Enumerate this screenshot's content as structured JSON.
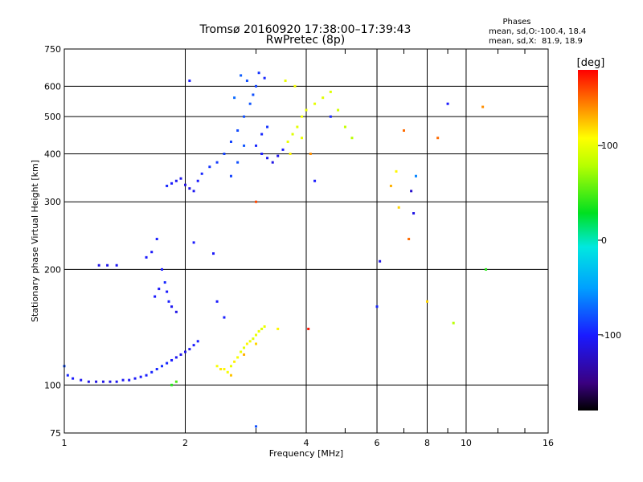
{
  "chart_data": {
    "type": "scatter",
    "title": "Tromsø 20160920 17:38:00–17:39:43",
    "subtitle": "RwPretec (8p)",
    "xlabel": "Frequency [MHz]",
    "ylabel": "Stationary phase Virtual Height [km]",
    "x_scale": "log",
    "y_scale": "log",
    "xlim": [
      1,
      16
    ],
    "ylim": [
      75,
      750
    ],
    "x_ticks": [
      1,
      2,
      4,
      6,
      8,
      10,
      16
    ],
    "y_ticks": [
      75,
      100,
      200,
      300,
      400,
      500,
      600,
      750
    ],
    "grid": true,
    "stats": {
      "heading": "Phases",
      "line1": "mean, sd,O:-100.4, 18.4",
      "line2": "mean, sd,X:  81.9, 18.9"
    },
    "colorbar": {
      "label": "[deg]",
      "range": [
        -180,
        180
      ],
      "ticks": [
        100,
        0,
        -100
      ]
    },
    "series": [
      {
        "points": [
          [
            1.0,
            112,
            -80
          ],
          [
            1.02,
            106,
            -95
          ],
          [
            1.05,
            104,
            -100
          ],
          [
            1.1,
            103,
            -105
          ],
          [
            1.15,
            102,
            -110
          ],
          [
            1.2,
            102,
            -112
          ],
          [
            1.25,
            102,
            -110
          ],
          [
            1.3,
            102,
            -108
          ],
          [
            1.35,
            102,
            -106
          ],
          [
            1.4,
            103,
            -104
          ],
          [
            1.45,
            103,
            -103
          ],
          [
            1.5,
            104,
            -102
          ],
          [
            1.55,
            105,
            -100
          ],
          [
            1.6,
            106,
            -98
          ],
          [
            1.65,
            108,
            -96
          ],
          [
            1.7,
            110,
            -95
          ],
          [
            1.75,
            112,
            -92
          ],
          [
            1.8,
            114,
            -95
          ],
          [
            1.85,
            116,
            -100
          ],
          [
            1.9,
            118,
            -105
          ],
          [
            1.95,
            120,
            -108
          ],
          [
            2.0,
            122,
            -110
          ],
          [
            2.05,
            124,
            -105
          ],
          [
            2.1,
            127,
            -100
          ],
          [
            2.15,
            130,
            -98
          ],
          [
            1.22,
            205,
            -110
          ],
          [
            1.28,
            205,
            -108
          ],
          [
            1.35,
            205,
            -105
          ],
          [
            1.6,
            215,
            -100
          ],
          [
            1.65,
            222,
            -102
          ],
          [
            1.7,
            240,
            -98
          ],
          [
            1.75,
            200,
            -100
          ],
          [
            1.78,
            185,
            -95
          ],
          [
            1.8,
            175,
            -100
          ],
          [
            1.82,
            165,
            -98
          ],
          [
            1.85,
            160,
            -105
          ],
          [
            1.9,
            155,
            -110
          ],
          [
            1.68,
            170,
            -100
          ],
          [
            1.72,
            178,
            -102
          ],
          [
            1.8,
            330,
            -95
          ],
          [
            1.85,
            335,
            -100
          ],
          [
            1.9,
            340,
            -105
          ],
          [
            1.95,
            345,
            -108
          ],
          [
            2.0,
            332,
            -112
          ],
          [
            2.05,
            325,
            -110
          ],
          [
            2.1,
            320,
            -105
          ],
          [
            2.15,
            340,
            -100
          ],
          [
            2.2,
            355,
            -95
          ],
          [
            2.3,
            370,
            -90
          ],
          [
            2.4,
            380,
            -88
          ],
          [
            2.5,
            400,
            -85
          ],
          [
            2.6,
            430,
            -85
          ],
          [
            2.7,
            460,
            -82
          ],
          [
            2.8,
            500,
            -80
          ],
          [
            2.9,
            540,
            -78
          ],
          [
            2.95,
            570,
            -80
          ],
          [
            2.6,
            350,
            -85
          ],
          [
            2.7,
            380,
            -80
          ],
          [
            2.8,
            420,
            -78
          ],
          [
            3.0,
            420,
            -95
          ],
          [
            3.1,
            400,
            -100
          ],
          [
            3.2,
            390,
            -105
          ],
          [
            3.3,
            380,
            -110
          ],
          [
            3.4,
            395,
            -108
          ],
          [
            3.5,
            410,
            -100
          ],
          [
            3.1,
            450,
            -95
          ],
          [
            3.2,
            470,
            -90
          ],
          [
            2.65,
            560,
            -70
          ],
          [
            2.75,
            640,
            -75
          ],
          [
            2.85,
            620,
            -80
          ],
          [
            3.0,
            600,
            -85
          ],
          [
            3.05,
            650,
            -90
          ],
          [
            3.15,
            630,
            -95
          ],
          [
            2.05,
            620,
            -100
          ],
          [
            2.1,
            235,
            -100
          ],
          [
            2.35,
            220,
            -102
          ],
          [
            2.4,
            165,
            -100
          ],
          [
            2.5,
            150,
            -98
          ],
          [
            3.6,
            430,
            100
          ],
          [
            3.7,
            450,
            95
          ],
          [
            3.8,
            470,
            98
          ],
          [
            3.9,
            500,
            102
          ],
          [
            4.0,
            520,
            100
          ],
          [
            4.2,
            540,
            98
          ],
          [
            4.4,
            560,
            96
          ],
          [
            4.6,
            580,
            95
          ],
          [
            4.8,
            520,
            90
          ],
          [
            5.0,
            470,
            85
          ],
          [
            5.2,
            440,
            80
          ],
          [
            3.75,
            600,
            105
          ],
          [
            3.55,
            620,
            100
          ],
          [
            3.65,
            400,
            110
          ],
          [
            3.9,
            440,
            100
          ],
          [
            2.5,
            110,
            110
          ],
          [
            2.55,
            108,
            105
          ],
          [
            2.6,
            112,
            100
          ],
          [
            2.65,
            115,
            112
          ],
          [
            2.7,
            118,
            105
          ],
          [
            2.75,
            122,
            100
          ],
          [
            2.8,
            125,
            95
          ],
          [
            2.85,
            128,
            110
          ],
          [
            2.9,
            130,
            100
          ],
          [
            2.95,
            132,
            95
          ],
          [
            3.0,
            135,
            100
          ],
          [
            3.05,
            138,
            100
          ],
          [
            3.1,
            140,
            95
          ],
          [
            3.15,
            142,
            100
          ],
          [
            2.4,
            112,
            105
          ],
          [
            2.45,
            110,
            115
          ],
          [
            2.6,
            106,
            125
          ],
          [
            2.8,
            120,
            130
          ],
          [
            3.0,
            128,
            120
          ],
          [
            4.05,
            140,
            175
          ],
          [
            4.1,
            400,
            140
          ],
          [
            4.6,
            500,
            -95
          ],
          [
            6.1,
            210,
            -110
          ],
          [
            6.5,
            330,
            130
          ],
          [
            6.7,
            360,
            110
          ],
          [
            6.8,
            290,
            120
          ],
          [
            7.0,
            460,
            150
          ],
          [
            7.2,
            240,
            150
          ],
          [
            7.3,
            320,
            -120
          ],
          [
            7.4,
            280,
            -110
          ],
          [
            7.5,
            350,
            -60
          ],
          [
            8.0,
            165,
            120
          ],
          [
            8.5,
            440,
            150
          ],
          [
            9.0,
            540,
            -100
          ],
          [
            9.3,
            145,
            80
          ],
          [
            11.0,
            530,
            140
          ],
          [
            11.2,
            200,
            40
          ],
          [
            1.85,
            100,
            40
          ],
          [
            1.9,
            102,
            50
          ],
          [
            3.0,
            78,
            -80
          ],
          [
            3.4,
            140,
            110
          ],
          [
            6.0,
            160,
            -95
          ],
          [
            3.0,
            300,
            160
          ],
          [
            4.2,
            340,
            -100
          ]
        ]
      }
    ]
  }
}
